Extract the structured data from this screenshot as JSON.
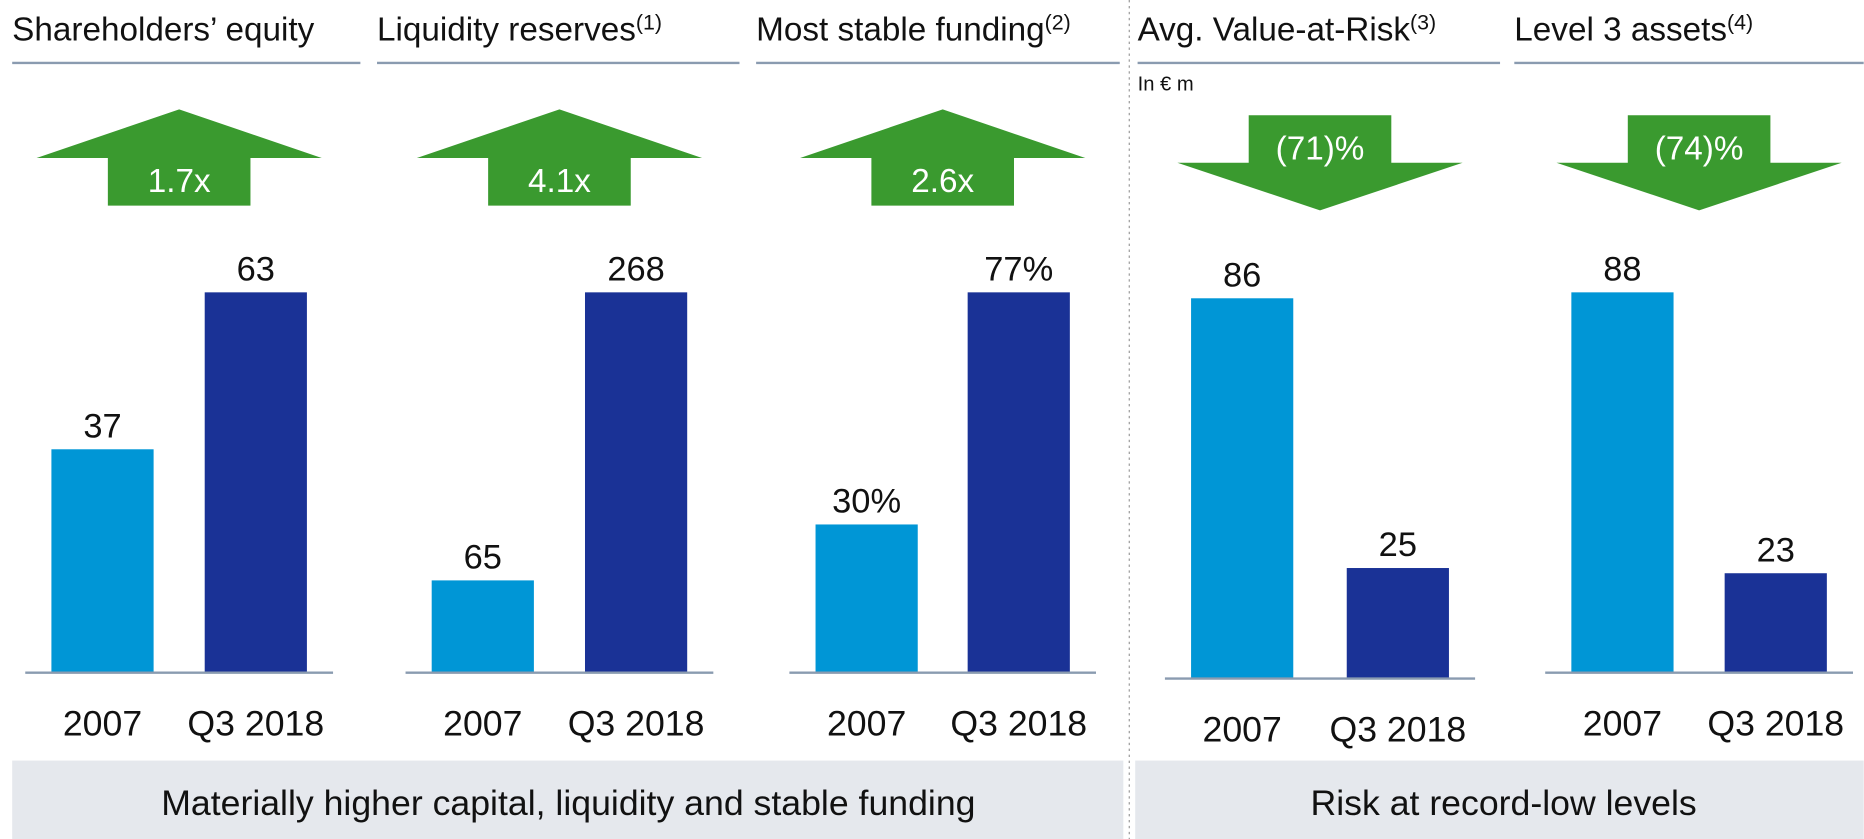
{
  "chart_data": [
    {
      "type": "bar",
      "title": "Shareholders’ equity",
      "categories": [
        "2007",
        "Q3 2018"
      ],
      "values": [
        37,
        63
      ],
      "colors": [
        "#0096d6",
        "#1a3296"
      ],
      "change": "1.7x",
      "direction": "up"
    },
    {
      "type": "bar",
      "title": "Liquidity reserves",
      "note": "(1)",
      "categories": [
        "2007",
        "Q3 2018"
      ],
      "values": [
        65,
        268
      ],
      "colors": [
        "#0096d6",
        "#1a3296"
      ],
      "change": "4.1x",
      "direction": "up"
    },
    {
      "type": "bar",
      "title": "Most stable funding",
      "note": "(2)",
      "categories": [
        "2007",
        "Q3 2018"
      ],
      "values": [
        30,
        77
      ],
      "value_labels": [
        "30%",
        "77%"
      ],
      "colors": [
        "#0096d6",
        "#1a3296"
      ],
      "change": "2.6x",
      "direction": "up"
    },
    {
      "type": "bar",
      "title": "Avg. Value-at-Risk",
      "note": "(3)",
      "subtitle": "In € m",
      "categories": [
        "2007",
        "Q3 2018"
      ],
      "values": [
        86,
        25
      ],
      "colors": [
        "#0096d6",
        "#1a3296"
      ],
      "change": "(71)%",
      "direction": "down"
    },
    {
      "type": "bar",
      "title": "Level 3 assets",
      "note": "(4)",
      "categories": [
        "2007",
        "Q3 2018"
      ],
      "values": [
        88,
        23
      ],
      "colors": [
        "#0096d6",
        "#1a3296"
      ],
      "change": "(74)%",
      "direction": "down"
    }
  ],
  "banners": [
    "Materially higher capital, liquidity and stable funding",
    "Risk at record-low levels"
  ]
}
